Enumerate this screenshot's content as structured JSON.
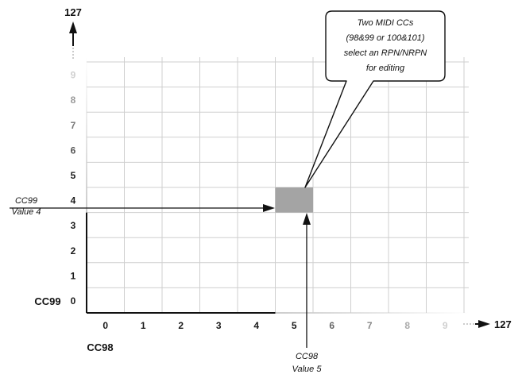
{
  "y_axis": {
    "max_label": "127",
    "name": "CC99",
    "ticks": [
      {
        "label": "0",
        "color": "#1a1a1a"
      },
      {
        "label": "1",
        "color": "#1a1a1a"
      },
      {
        "label": "2",
        "color": "#1a1a1a"
      },
      {
        "label": "3",
        "color": "#1a1a1a"
      },
      {
        "label": "4",
        "color": "#1a1a1a"
      },
      {
        "label": "5",
        "color": "#1a1a1a"
      },
      {
        "label": "6",
        "color": "#555555"
      },
      {
        "label": "7",
        "color": "#777777"
      },
      {
        "label": "8",
        "color": "#999999"
      },
      {
        "label": "9",
        "color": "#d0d0d0"
      }
    ]
  },
  "x_axis": {
    "max_label": "127",
    "name": "CC98",
    "ticks": [
      {
        "label": "0",
        "color": "#1a1a1a"
      },
      {
        "label": "1",
        "color": "#1a1a1a"
      },
      {
        "label": "2",
        "color": "#1a1a1a"
      },
      {
        "label": "3",
        "color": "#1a1a1a"
      },
      {
        "label": "4",
        "color": "#1a1a1a"
      },
      {
        "label": "5",
        "color": "#1a1a1a"
      },
      {
        "label": "6",
        "color": "#666666"
      },
      {
        "label": "7",
        "color": "#888888"
      },
      {
        "label": "8",
        "color": "#aaaaaa"
      },
      {
        "label": "9",
        "color": "#d0d0d0"
      }
    ]
  },
  "grid": {
    "columns": 10,
    "rows": 10,
    "line_color": "#cfcfcf"
  },
  "highlight": {
    "cc98": 5,
    "cc99": 4,
    "color": "#a4a4a4"
  },
  "annotations": {
    "cc99_value": {
      "line1": "CC99",
      "line2": "Value 4"
    },
    "cc98_value": {
      "line1": "CC98",
      "line2": "Value 5"
    }
  },
  "callout": {
    "lines": [
      "Two MIDI CCs",
      "(98&99 or 100&101)",
      "select an RPN/NRPN",
      "for editing"
    ]
  }
}
